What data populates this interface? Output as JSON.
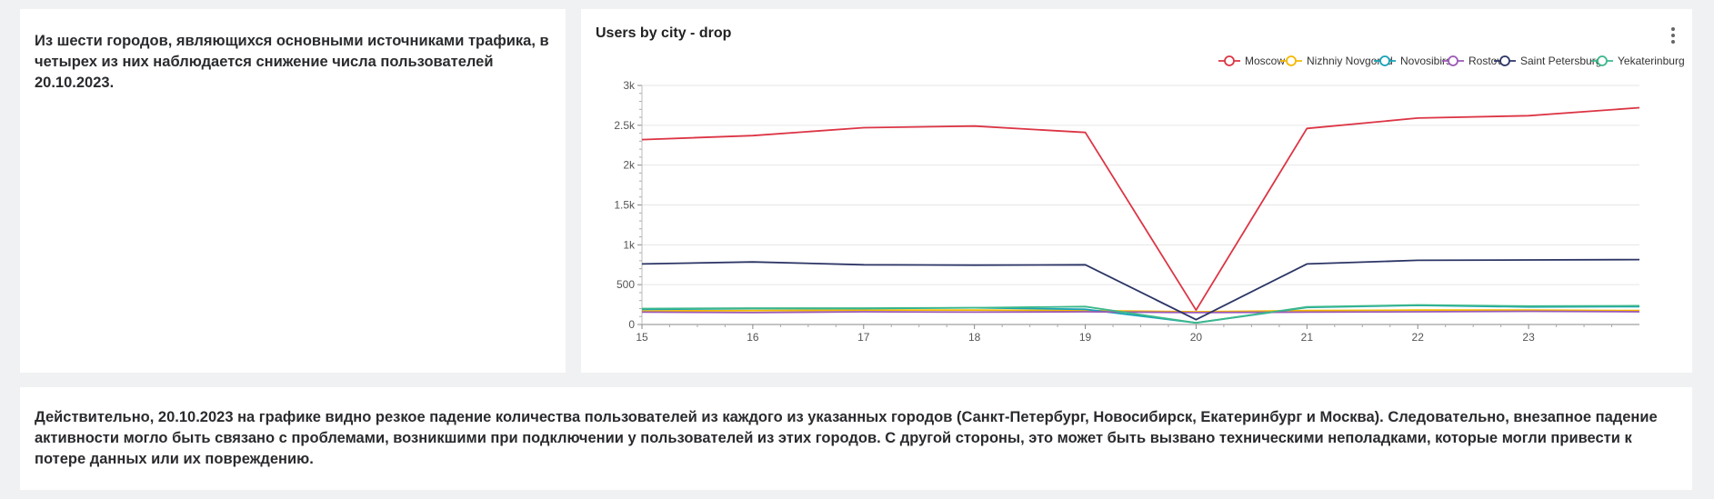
{
  "left_card": {
    "text": "Из шести городов, являющихся основными источниками трафика, в четырех из них наблюдается снижение числа пользователей 20.10.2023."
  },
  "bottom_card": {
    "text": "Действительно, 20.10.2023 на графике видно резкое падение количества пользователей из каждого из указанных городов (Санкт-Петербург, Новосибирск, Екатеринбург и Москва). Следовательно, внезапное падение активности могло быть связано с проблемами, возникшими при подключении у пользователей из этих городов. С другой стороны, это может быть вызвано техническими неполадками, которые могли привести к потере данных или их повреждению."
  },
  "chart_data": {
    "type": "line",
    "title": "Users by city - drop",
    "xlabel": "",
    "ylabel": "",
    "x": [
      15,
      16,
      17,
      18,
      19,
      20,
      21,
      22,
      23,
      24
    ],
    "x_tick_labels": [
      "15",
      "16",
      "17",
      "18",
      "19",
      "20",
      "21",
      "22",
      "23"
    ],
    "xlim": [
      15,
      24
    ],
    "ylim": [
      0,
      3000
    ],
    "y_ticks": [
      0,
      500,
      1000,
      1500,
      2000,
      2500,
      3000
    ],
    "y_tick_labels": [
      "0",
      "500",
      "1k",
      "1.5k",
      "2k",
      "2.5k",
      "3k"
    ],
    "grid": true,
    "legend_position": "top-right",
    "series": [
      {
        "name": "Moscow",
        "color": "#dc3545",
        "values": [
          2320,
          2370,
          2470,
          2490,
          2410,
          180,
          2460,
          2590,
          2620,
          2720
        ]
      },
      {
        "name": "Nizhniy Novgorod",
        "color": "#f5b800",
        "values": [
          170,
          175,
          180,
          180,
          175,
          160,
          175,
          180,
          180,
          175
        ]
      },
      {
        "name": "Novosibirsk",
        "color": "#17a2b8",
        "values": [
          190,
          200,
          200,
          210,
          190,
          20,
          215,
          240,
          220,
          225
        ]
      },
      {
        "name": "Rostov",
        "color": "#9b59b6",
        "values": [
          155,
          150,
          160,
          155,
          160,
          150,
          155,
          160,
          165,
          160
        ]
      },
      {
        "name": "Saint Petersburg",
        "color": "#2c3566",
        "values": [
          760,
          785,
          750,
          745,
          750,
          60,
          760,
          805,
          810,
          815
        ]
      },
      {
        "name": "Yekaterinburg",
        "color": "#3cb88a",
        "values": [
          200,
          205,
          205,
          210,
          225,
          20,
          220,
          245,
          230,
          235
        ]
      }
    ]
  }
}
